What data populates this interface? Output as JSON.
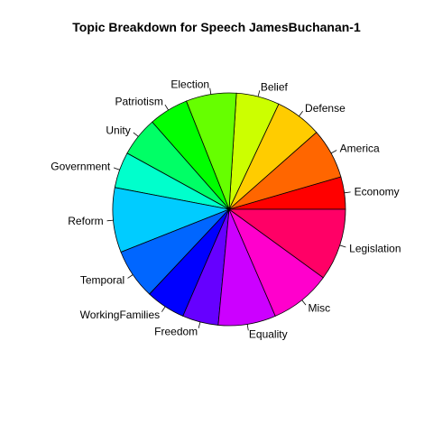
{
  "chart_data": {
    "type": "pie",
    "title": "Topic Breakdown for Speech JamesBuchanan-1",
    "start_angle_deg": 0,
    "direction": "counterclockwise",
    "slices": [
      {
        "label": "Economy",
        "value": 4.5,
        "color": "#FF0000"
      },
      {
        "label": "America",
        "value": 7.0,
        "color": "#FF6600"
      },
      {
        "label": "Defense",
        "value": 6.5,
        "color": "#FFCC00"
      },
      {
        "label": "Belief",
        "value": 6.0,
        "color": "#CCFF00"
      },
      {
        "label": "Election",
        "value": 7.0,
        "color": "#66FF00"
      },
      {
        "label": "Patriotism",
        "value": 5.5,
        "color": "#00FF00"
      },
      {
        "label": "Unity",
        "value": 5.5,
        "color": "#00FF66"
      },
      {
        "label": "Government",
        "value": 5.0,
        "color": "#00FFCC"
      },
      {
        "label": "Reform",
        "value": 9.0,
        "color": "#00CCFF"
      },
      {
        "label": "Temporal",
        "value": 7.0,
        "color": "#0066FF"
      },
      {
        "label": "WorkingFamilies",
        "value": 5.5,
        "color": "#0000FF"
      },
      {
        "label": "Freedom",
        "value": 5.0,
        "color": "#6600FF"
      },
      {
        "label": "Equality",
        "value": 8.0,
        "color": "#CC00FF"
      },
      {
        "label": "Misc",
        "value": 8.5,
        "color": "#FF00CC"
      },
      {
        "label": "Legislation",
        "value": 10.0,
        "color": "#FF0066"
      }
    ]
  }
}
